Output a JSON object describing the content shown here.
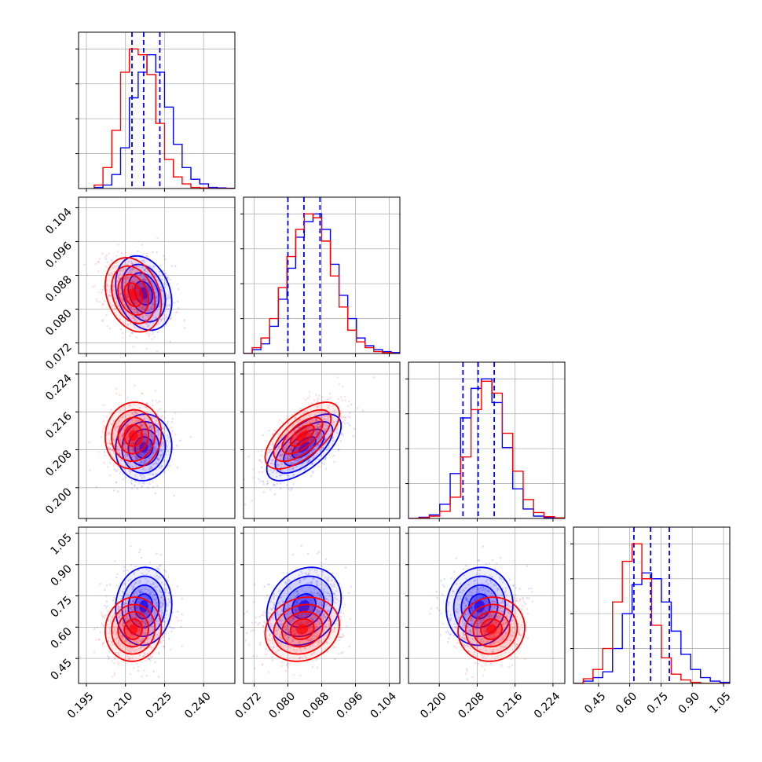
{
  "chart_data": {
    "type": "corner",
    "description_colors": {
      "series_a": "#0000ff",
      "series_b": "#ff0000"
    },
    "grid": true,
    "parameters": [
      {
        "range": [
          0.192,
          0.252
        ],
        "ticks": [
          0.195,
          0.21,
          0.225,
          0.24
        ],
        "tick_labels": [
          "0.195",
          "0.210",
          "0.225",
          "0.240"
        ]
      },
      {
        "range": [
          0.0695,
          0.1065
        ],
        "ticks": [
          0.072,
          0.08,
          0.088,
          0.096,
          0.104
        ],
        "tick_labels": [
          "0.072",
          "0.080",
          "0.088",
          "0.096",
          "0.104"
        ]
      },
      {
        "range": [
          0.1935,
          0.2265
        ],
        "ticks": [
          0.2,
          0.208,
          0.216,
          0.224
        ],
        "tick_labels": [
          "0.200",
          "0.208",
          "0.216",
          "0.224"
        ]
      },
      {
        "range": [
          0.33,
          1.08
        ],
        "ticks": [
          0.45,
          0.6,
          0.75,
          0.9,
          1.05
        ],
        "tick_labels": [
          "0.45",
          "0.60",
          "0.75",
          "0.90",
          "1.05"
        ]
      }
    ],
    "series": [
      {
        "color": "#0000ff",
        "histograms": [
          {
            "bin_edges_range": [
              0.198,
              0.252
            ],
            "counts": [
              1,
              3,
              12,
              35,
              78,
              100,
              115,
              100,
              70,
              38,
              18,
              8,
              4,
              1,
              0.5,
              0.2
            ]
          },
          {
            "bin_edges_range": [
              0.0695,
              0.1065
            ],
            "counts": [
              0,
              2,
              5,
              14,
              28,
              44,
              60,
              68,
              72,
              64,
              46,
              30,
              18,
              8,
              4,
              2,
              1,
              0.5
            ]
          },
          {
            "bin_edges_range": [
              0.1935,
              0.2265
            ],
            "counts": [
              0,
              1,
              3,
              12,
              38,
              85,
              110,
              118,
              98,
              60,
              25,
              8,
              2,
              0.5,
              0
            ]
          },
          {
            "bin_edges_range": [
              0.33,
              1.08
            ],
            "counts": [
              0,
              2,
              5,
              10,
              30,
              60,
              85,
              95,
              90,
              70,
              45,
              25,
              12,
              5,
              2,
              1
            ]
          }
        ],
        "quantile_lines": [
          [
            0.2125,
            0.217,
            0.2232
          ],
          [
            0.08,
            0.0838,
            0.0876
          ],
          [
            0.205,
            0.2082,
            0.2116
          ],
          [
            0.62,
            0.7,
            0.79
          ]
        ],
        "means": [
          0.217,
          0.0838,
          0.2085,
          0.7
        ],
        "sigmas": [
          0.0049,
          0.004,
          0.0032,
          0.085
        ],
        "correlation": [
          [
            1,
            -0.25,
            0.05,
            0.05
          ],
          [
            -0.25,
            1,
            0.65,
            0.2
          ],
          [
            0.05,
            0.65,
            1,
            0.05
          ],
          [
            0.05,
            0.2,
            0.05,
            1
          ]
        ]
      },
      {
        "color": "#ff0000",
        "histograms": [
          {
            "bin_edges_range": [
              0.198,
              0.252
            ],
            "counts": [
              3,
              18,
              50,
              100,
              120,
              115,
              98,
              56,
              25,
              10,
              4,
              1,
              0.5,
              0,
              0,
              0
            ]
          },
          {
            "bin_edges_range": [
              0.0695,
              0.1065
            ],
            "counts": [
              0,
              3,
              8,
              18,
              34,
              50,
              64,
              72,
              70,
              58,
              40,
              24,
              12,
              6,
              3,
              1,
              0.5,
              0
            ]
          },
          {
            "bin_edges_range": [
              0.1935,
              0.2265
            ],
            "counts": [
              0,
              0.5,
              2,
              6,
              18,
              52,
              92,
              116,
              106,
              72,
              40,
              16,
              5,
              1.5,
              0.5
            ]
          },
          {
            "bin_edges_range": [
              0.33,
              1.08
            ],
            "counts": [
              0,
              4,
              12,
              30,
              70,
              105,
              120,
              90,
              50,
              22,
              8,
              3,
              1,
              0,
              0,
              0
            ]
          }
        ],
        "means": [
          0.213,
          0.0834,
          0.211,
          0.59
        ],
        "sigmas": [
          0.0049,
          0.004,
          0.0032,
          0.07
        ],
        "correlation": [
          [
            1,
            -0.25,
            0.05,
            0.05
          ],
          [
            -0.25,
            1,
            0.65,
            0.15
          ],
          [
            0.05,
            0.65,
            1,
            0.05
          ],
          [
            0.05,
            0.15,
            0.05,
            1
          ]
        ]
      }
    ]
  }
}
